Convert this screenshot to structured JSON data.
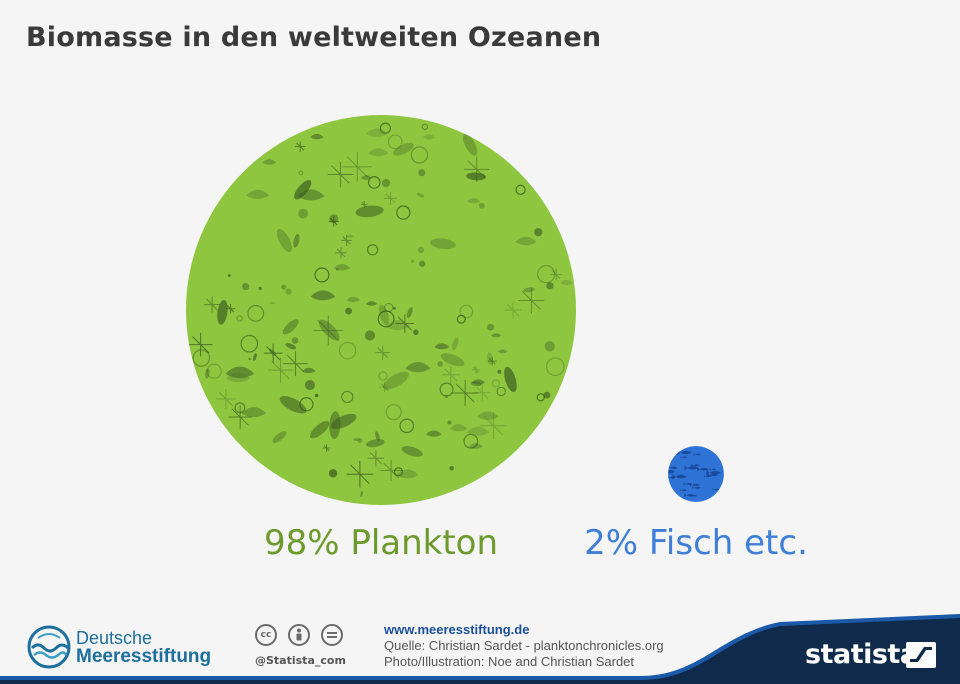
{
  "title": "Biomasse in den weltweiten Ozeanen",
  "colors": {
    "plankton": "#8ec63f",
    "plankton_label": "#6c9a2c",
    "fish": "#2f73d6",
    "fish_label": "#3f7fd8",
    "background": "#f5f5f5",
    "footer_navy": "#0f2a4a"
  },
  "chart_data": {
    "type": "bubble",
    "title": "Biomasse in den weltweiten Ozeanen",
    "unit": "%",
    "series": [
      {
        "label": "98% Plankton",
        "value": 98,
        "fill": "plankton-illustration"
      },
      {
        "label": "2% Fisch etc.",
        "value": 2,
        "fill": "fish-illustration"
      }
    ]
  },
  "footer": {
    "publisher_line1": "Deutsche",
    "publisher_line2": "Meeresstiftung",
    "cc_icons": [
      "cc-icon",
      "person-icon",
      "equals-icon"
    ],
    "cc_handle": "@Statista_com",
    "website": "www.meeresstiftung.de",
    "source": "Quelle: Christian Sardet - planktonchronicles.org",
    "photo_credit": "Photo/Illustration: Noe and Christian Sardet",
    "brand": "statista"
  }
}
